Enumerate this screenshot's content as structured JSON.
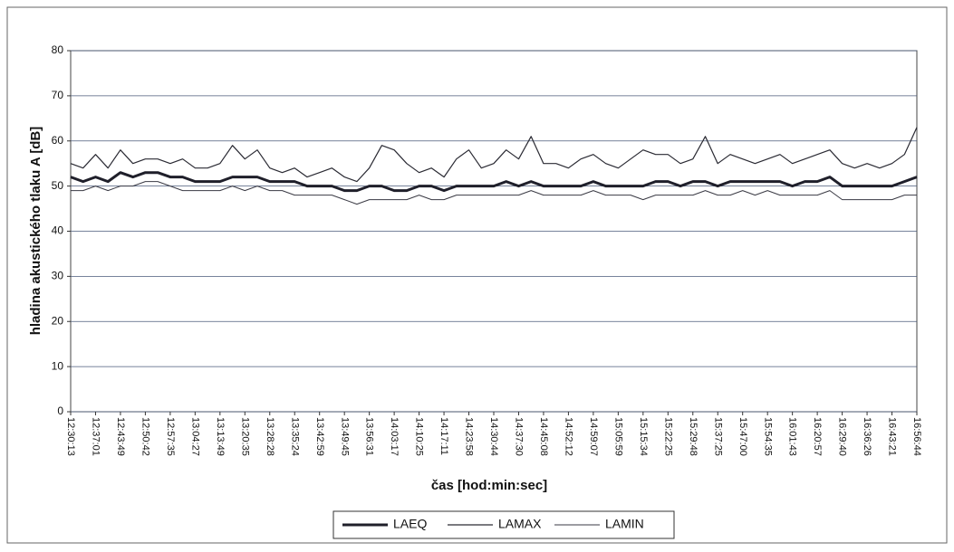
{
  "chart_data": {
    "type": "line",
    "y_label": "hladina akustického tlaku A [dB]",
    "x_label": "čas [hod:min:sec]",
    "categories": [
      "12:30:13",
      null,
      "12:37:01",
      null,
      "12:43:49",
      null,
      "12:50:42",
      null,
      "12:57:35",
      null,
      "13:04:27",
      null,
      "13:13:49",
      null,
      "13:20:35",
      null,
      "13:28:28",
      null,
      "13:35:24",
      null,
      "13:42:59",
      null,
      "13:49:45",
      null,
      "13:56:31",
      null,
      "14:03:17",
      null,
      "14:10:25",
      null,
      "14:17:11",
      null,
      "14:23:58",
      null,
      "14:30:44",
      null,
      "14:37:30",
      null,
      "14:45:08",
      null,
      "14:52:12",
      null,
      "14:59:07",
      null,
      "15:05:59",
      null,
      "15:15:34",
      null,
      "15:22:25",
      null,
      "15:29:48",
      null,
      "15:37:25",
      null,
      "15:47:00",
      null,
      "15:54:35",
      null,
      "16:01:43",
      null,
      "16:20:57",
      null,
      "16:29:40",
      null,
      "16:36:26",
      null,
      "16:43:21",
      null,
      "16:56:44"
    ],
    "series": [
      {
        "name": "LAEQ",
        "color": "#1f1f2a",
        "width": 3,
        "values": [
          52,
          51,
          52,
          51,
          53,
          52,
          53,
          53,
          52,
          52,
          51,
          51,
          51,
          52,
          52,
          52,
          51,
          51,
          51,
          50,
          50,
          50,
          49,
          49,
          50,
          50,
          49,
          49,
          50,
          50,
          49,
          50,
          50,
          50,
          50,
          51,
          50,
          51,
          50,
          50,
          50,
          50,
          51,
          50,
          50,
          50,
          50,
          51,
          51,
          50,
          51,
          51,
          50,
          51,
          51,
          51,
          51,
          51,
          50,
          51,
          51,
          52,
          50,
          50,
          50,
          50,
          50,
          51,
          52
        ]
      },
      {
        "name": "LAMAX",
        "color": "#2a2a33",
        "width": 1.2,
        "values": [
          55,
          54,
          57,
          54,
          58,
          55,
          56,
          56,
          55,
          56,
          54,
          54,
          55,
          59,
          56,
          58,
          54,
          53,
          54,
          52,
          53,
          54,
          52,
          51,
          54,
          59,
          58,
          55,
          53,
          54,
          52,
          56,
          58,
          54,
          55,
          58,
          56,
          61,
          55,
          55,
          54,
          56,
          57,
          55,
          54,
          56,
          58,
          57,
          57,
          55,
          56,
          61,
          55,
          57,
          56,
          55,
          56,
          57,
          55,
          56,
          57,
          58,
          55,
          54,
          55,
          54,
          55,
          57,
          63
        ]
      },
      {
        "name": "LAMIN",
        "color": "#3a3a44",
        "width": 1,
        "values": [
          49,
          49,
          50,
          49,
          50,
          50,
          51,
          51,
          50,
          49,
          49,
          49,
          49,
          50,
          49,
          50,
          49,
          49,
          48,
          48,
          48,
          48,
          47,
          46,
          47,
          47,
          47,
          47,
          48,
          47,
          47,
          48,
          48,
          48,
          48,
          48,
          48,
          49,
          48,
          48,
          48,
          48,
          49,
          48,
          48,
          48,
          47,
          48,
          48,
          48,
          48,
          49,
          48,
          48,
          49,
          48,
          49,
          48,
          48,
          48,
          48,
          49,
          47,
          47,
          47,
          47,
          47,
          48,
          48
        ]
      }
    ],
    "ylim": [
      0,
      80
    ],
    "yticks": [
      0,
      10,
      20,
      30,
      40,
      50,
      60,
      70,
      80
    ],
    "grid": true
  }
}
